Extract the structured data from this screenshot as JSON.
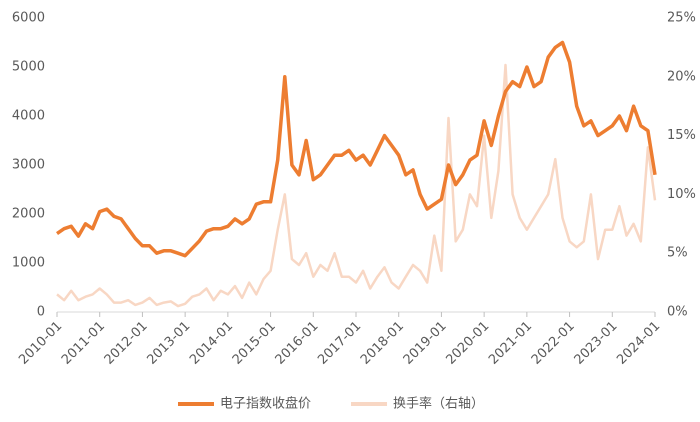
{
  "chart_data": {
    "type": "line",
    "x": [
      "2010-01",
      "2010-03",
      "2010-05",
      "2010-07",
      "2010-09",
      "2010-11",
      "2011-01",
      "2011-03",
      "2011-05",
      "2011-07",
      "2011-09",
      "2011-11",
      "2012-01",
      "2012-03",
      "2012-05",
      "2012-07",
      "2012-09",
      "2012-11",
      "2013-01",
      "2013-03",
      "2013-05",
      "2013-07",
      "2013-09",
      "2013-11",
      "2014-01",
      "2014-03",
      "2014-05",
      "2014-07",
      "2014-09",
      "2014-11",
      "2015-01",
      "2015-03",
      "2015-05",
      "2015-07",
      "2015-09",
      "2015-11",
      "2016-01",
      "2016-03",
      "2016-05",
      "2016-07",
      "2016-09",
      "2016-11",
      "2017-01",
      "2017-03",
      "2017-05",
      "2017-07",
      "2017-09",
      "2017-11",
      "2018-01",
      "2018-03",
      "2018-05",
      "2018-07",
      "2018-09",
      "2018-11",
      "2019-01",
      "2019-03",
      "2019-05",
      "2019-07",
      "2019-09",
      "2019-11",
      "2020-01",
      "2020-03",
      "2020-05",
      "2020-07",
      "2020-09",
      "2020-11",
      "2021-01",
      "2021-03",
      "2021-05",
      "2021-07",
      "2021-09",
      "2021-11",
      "2022-01",
      "2022-03",
      "2022-05",
      "2022-07",
      "2022-09",
      "2022-11",
      "2023-01",
      "2023-03",
      "2023-05",
      "2023-07",
      "2023-09",
      "2023-11",
      "2024-01"
    ],
    "series": [
      {
        "name": "换手率（右轴）",
        "color": "#f8d7c4",
        "axis": "y2",
        "values": [
          1.5,
          1.0,
          1.8,
          1.0,
          1.3,
          1.5,
          2.0,
          1.5,
          0.8,
          0.8,
          1.0,
          0.6,
          0.8,
          1.2,
          0.6,
          0.8,
          0.9,
          0.5,
          0.7,
          1.3,
          1.5,
          2.0,
          1.0,
          1.8,
          1.5,
          2.2,
          1.2,
          2.5,
          1.5,
          2.8,
          3.5,
          7.0,
          10.0,
          4.5,
          4.0,
          5.0,
          3.0,
          4.0,
          3.5,
          5.0,
          3.0,
          3.0,
          2.5,
          3.5,
          2.0,
          3.0,
          3.8,
          2.5,
          2.0,
          3.0,
          4.0,
          3.5,
          2.5,
          6.5,
          3.5,
          16.5,
          6.0,
          7.0,
          10.0,
          9.0,
          15.0,
          8.0,
          12.0,
          21.0,
          10.0,
          8.0,
          7.0,
          8.0,
          9.0,
          10.0,
          13.0,
          8.0,
          6.0,
          5.5,
          6.0,
          10.0,
          4.5,
          7.0,
          7.0,
          9.0,
          6.5,
          7.5,
          6.0,
          14.0,
          9.5
        ]
      },
      {
        "name": "电子指数收盘价",
        "color": "#ed7d31",
        "values": [
          1600,
          1700,
          1750,
          1550,
          1800,
          1700,
          2050,
          2100,
          1950,
          1900,
          1700,
          1500,
          1350,
          1350,
          1200,
          1250,
          1250,
          1200,
          1150,
          1300,
          1450,
          1650,
          1700,
          1700,
          1750,
          1900,
          1800,
          1900,
          2200,
          2250,
          2250,
          3100,
          4800,
          3000,
          2800,
          3500,
          2700,
          2800,
          3000,
          3200,
          3200,
          3300,
          3100,
          3200,
          3000,
          3300,
          3600,
          3400,
          3200,
          2800,
          2900,
          2400,
          2100,
          2200,
          2300,
          3000,
          2600,
          2800,
          3100,
          3200,
          3900,
          3400,
          4000,
          4500,
          4700,
          4600,
          5000,
          4600,
          4700,
          5200,
          5400,
          5500,
          5100,
          4200,
          3800,
          3900,
          3600,
          3700,
          3800,
          4000,
          3700,
          4200,
          3800,
          3700,
          2800
        ]
      }
    ],
    "xlim": [
      "2010-01",
      "2024-01"
    ],
    "xticks": [
      "2010-01",
      "2011-01",
      "2012-01",
      "2013-01",
      "2014-01",
      "2015-01",
      "2016-01",
      "2017-01",
      "2018-01",
      "2019-01",
      "2020-01",
      "2021-01",
      "2022-01",
      "2023-01",
      "2024-01"
    ],
    "ylim": [
      0,
      6000
    ],
    "yticks": [
      0,
      1000,
      2000,
      3000,
      4000,
      5000,
      6000
    ],
    "y2lim": [
      0,
      25
    ],
    "y2ticks": [
      {
        "value": 0,
        "label": "0%"
      },
      {
        "value": 5,
        "label": "5%"
      },
      {
        "value": 10,
        "label": "10%"
      },
      {
        "value": 15,
        "label": "15%"
      },
      {
        "value": 20,
        "label": "20%"
      },
      {
        "value": 25,
        "label": "25%"
      }
    ],
    "legend": "bottom"
  }
}
